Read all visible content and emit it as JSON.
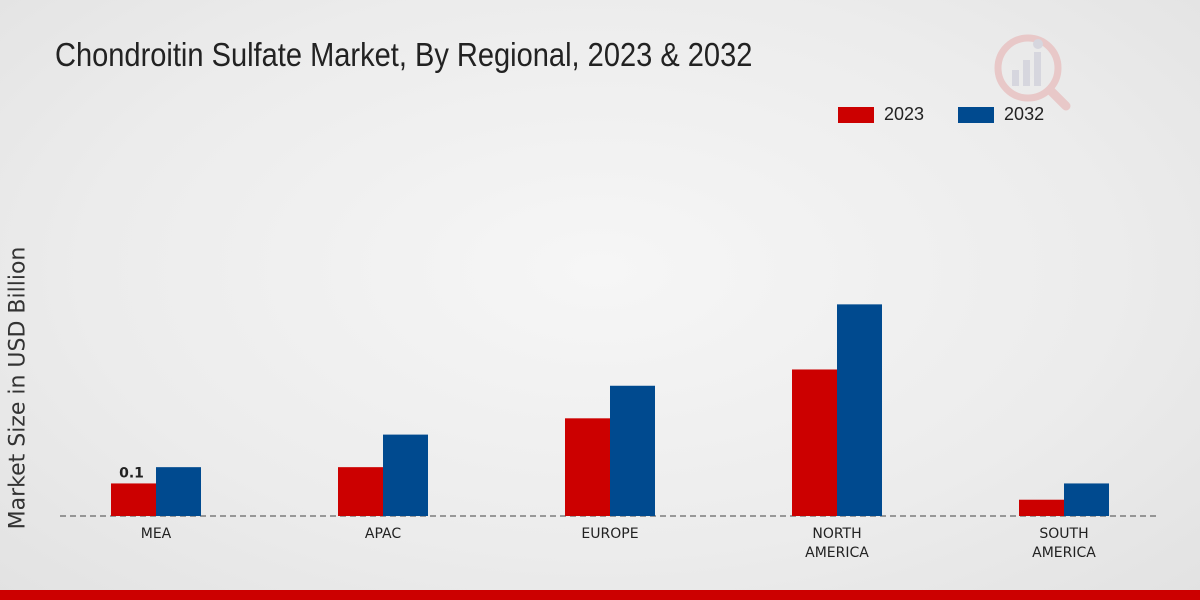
{
  "chart_data": {
    "type": "bar",
    "title": "Chondroitin Sulfate Market, By Regional, 2023 & 2032",
    "ylabel": "Market Size in USD Billion",
    "xlabel": "",
    "categories": [
      [
        "MEA"
      ],
      [
        "APAC"
      ],
      [
        "EUROPE"
      ],
      [
        "NORTH",
        "AMERICA"
      ],
      [
        "SOUTH",
        "AMERICA"
      ]
    ],
    "series": [
      {
        "name": "2023",
        "color": "#cc0000",
        "values": [
          0.1,
          0.15,
          0.3,
          0.45,
          0.05
        ]
      },
      {
        "name": "2032",
        "color": "#004a8f",
        "values": [
          0.15,
          0.25,
          0.4,
          0.65,
          0.1
        ]
      }
    ],
    "data_labels": [
      {
        "series": 0,
        "index": 0,
        "text": "0.1"
      }
    ],
    "ylim": [
      0,
      1.0
    ],
    "legend": "top-right",
    "grid": false
  },
  "footer_color": "#cc0000"
}
